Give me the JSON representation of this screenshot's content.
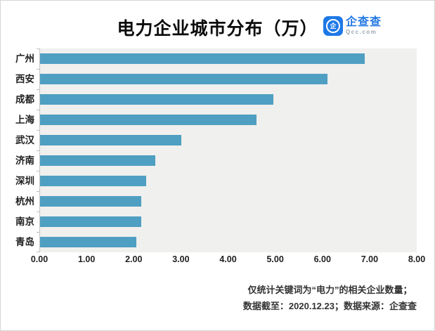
{
  "header": {
    "title": "电力企业城市分布（万）",
    "logo": {
      "icon_glyph": "企",
      "name": "企查查",
      "domain": "Qcc.com",
      "brand_color": "#1e79e8",
      "text_color": "#2478e5"
    }
  },
  "chart_data": {
    "type": "bar",
    "orientation": "horizontal",
    "title": "电力企业城市分布（万）",
    "categories": [
      "广州",
      "西安",
      "成都",
      "上海",
      "武汉",
      "济南",
      "深圳",
      "杭州",
      "南京",
      "青岛"
    ],
    "values": [
      6.9,
      6.1,
      4.95,
      4.6,
      3.0,
      2.45,
      2.25,
      2.15,
      2.15,
      2.05
    ],
    "unit": "万",
    "xlim": [
      0,
      8
    ],
    "x_tick_labels": [
      "0.00",
      "1.00",
      "2.00",
      "3.00",
      "4.00",
      "5.00",
      "6.00",
      "7.00",
      "8.00"
    ],
    "bar_color": "#4f9fc2",
    "plot_bg": "#f0f0ee",
    "grid": false,
    "legend": false
  },
  "footer": {
    "line1": "仅统计关键词为“电力”的相关企业数量；",
    "line2": "数据截至：2020.12.23；数据来源：企查查"
  }
}
